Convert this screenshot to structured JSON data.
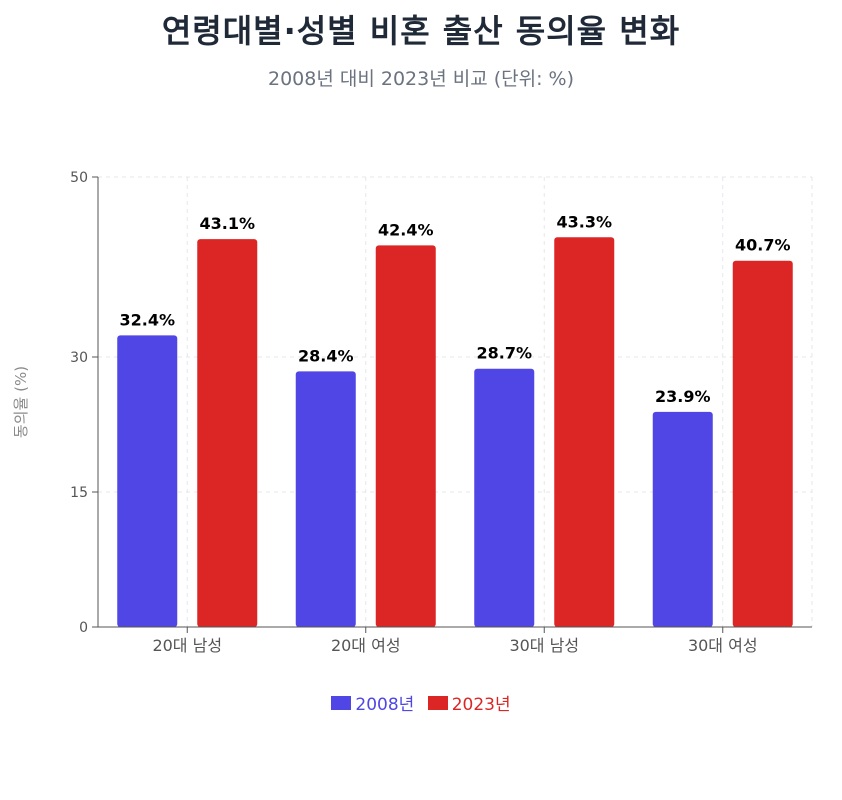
{
  "title": "연령대별·성별 비혼 출산 동의율 변화",
  "subtitle": "2008년 대비 2023년 비교 (단위: %)",
  "colors": {
    "s2008": "#4f46e5",
    "s2023": "#dc2626",
    "grid": "#e5e7eb",
    "axis": "#555555"
  },
  "chart_data": {
    "type": "bar",
    "title": "연령대별·성별 비혼 출산 동의율 변화",
    "subtitle": "2008년 대비 2023년 비교 (단위: %)",
    "xlabel": "",
    "ylabel": "동의율 (%)",
    "ylim": [
      0,
      50
    ],
    "yticks": [
      0,
      15,
      30,
      50
    ],
    "grid": true,
    "legend": "bottom",
    "categories": [
      "20대 남성",
      "20대 여성",
      "30대 남성",
      "30대 여성"
    ],
    "series": [
      {
        "name": "2008년",
        "values": [
          32.4,
          28.4,
          28.7,
          23.9
        ],
        "labels": [
          "32.4%",
          "28.4%",
          "28.7%",
          "23.9%"
        ]
      },
      {
        "name": "2023년",
        "values": [
          43.1,
          42.4,
          43.3,
          40.7
        ],
        "labels": [
          "43.1%",
          "42.4%",
          "43.3%",
          "40.7%"
        ]
      }
    ]
  }
}
